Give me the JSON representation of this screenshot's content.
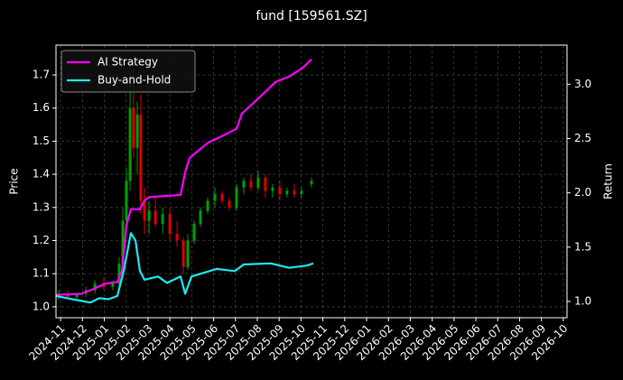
{
  "chart_data": {
    "type": "candlestick",
    "title": "fund [159561.SZ]",
    "ylabel": "Price",
    "y2label": "Return",
    "xlim": [
      -0.21,
      23.17
    ],
    "xticks": [
      {
        "value": 0,
        "label": "2024-11"
      },
      {
        "value": 1,
        "label": "2024-12"
      },
      {
        "value": 2,
        "label": "2025-01"
      },
      {
        "value": 3,
        "label": "2025-02"
      },
      {
        "value": 4,
        "label": "2025-03"
      },
      {
        "value": 5,
        "label": "2025-04"
      },
      {
        "value": 6,
        "label": "2025-05"
      },
      {
        "value": 7,
        "label": "2025-06"
      },
      {
        "value": 8,
        "label": "2025-07"
      },
      {
        "value": 9,
        "label": "2025-08"
      },
      {
        "value": 10,
        "label": "2025-09"
      },
      {
        "value": 11,
        "label": "2025-10"
      },
      {
        "value": 12,
        "label": "2025-11"
      },
      {
        "value": 13,
        "label": "2025-12"
      },
      {
        "value": 14,
        "label": "2026-01"
      },
      {
        "value": 15,
        "label": "2026-02"
      },
      {
        "value": 16,
        "label": "2026-03"
      },
      {
        "value": 17,
        "label": "2026-04"
      },
      {
        "value": 18,
        "label": "2026-05"
      },
      {
        "value": 19,
        "label": "2026-06"
      },
      {
        "value": 20,
        "label": "2026-07"
      },
      {
        "value": 21,
        "label": "2026-08"
      },
      {
        "value": 22,
        "label": "2026-09"
      },
      {
        "value": 23,
        "label": "2026-10"
      }
    ],
    "ylim": [
      0.967,
      1.79
    ],
    "yticks": [
      {
        "value": 1,
        "label": "1.0"
      },
      1.1,
      1.2,
      1.3,
      1.4,
      1.5,
      1.6,
      1.7
    ],
    "y2lim": [
      0.85,
      3.36
    ],
    "y2ticks": [
      {
        "value": 1,
        "label": "1.0"
      },
      1.5,
      {
        "value": 2,
        "label": "2.0"
      },
      2.5,
      {
        "value": 3,
        "label": "3.0"
      }
    ],
    "grid": true,
    "legend": "upper left",
    "candles": {
      "up_color": "#00a000",
      "down_color": "#e00000",
      "x": [
        -0.08,
        0.33,
        0.74,
        1.16,
        1.57,
        1.98,
        2.39,
        2.68,
        2.85,
        3.01,
        3.18,
        3.34,
        3.51,
        3.67,
        3.84,
        4.05,
        4.34,
        4.67,
        5.0,
        5.33,
        5.62,
        5.82,
        6.11,
        6.4,
        6.73,
        7.06,
        7.39,
        7.72,
        8.05,
        8.38,
        8.71,
        9.04,
        9.37,
        9.7,
        10.03,
        10.36,
        10.69,
        11.02,
        11.48
      ],
      "open": [
        1.03,
        1.04,
        1.03,
        1.04,
        1.05,
        1.07,
        1.06,
        1.07,
        1.13,
        1.26,
        1.38,
        1.6,
        1.48,
        1.58,
        1.32,
        1.26,
        1.29,
        1.25,
        1.28,
        1.22,
        1.2,
        1.12,
        1.2,
        1.25,
        1.29,
        1.32,
        1.34,
        1.32,
        1.3,
        1.36,
        1.38,
        1.36,
        1.39,
        1.35,
        1.36,
        1.34,
        1.35,
        1.34,
        1.37
      ],
      "high": [
        1.05,
        1.05,
        1.04,
        1.06,
        1.08,
        1.09,
        1.08,
        1.15,
        1.3,
        1.42,
        1.75,
        1.72,
        1.62,
        1.64,
        1.36,
        1.32,
        1.33,
        1.3,
        1.3,
        1.26,
        1.21,
        1.22,
        1.26,
        1.3,
        1.33,
        1.36,
        1.35,
        1.33,
        1.37,
        1.39,
        1.4,
        1.41,
        1.4,
        1.37,
        1.38,
        1.36,
        1.37,
        1.36,
        1.39
      ],
      "low": [
        1.02,
        1.03,
        1.02,
        1.03,
        1.04,
        1.05,
        1.05,
        1.06,
        1.1,
        1.22,
        1.35,
        1.45,
        1.4,
        1.28,
        1.22,
        1.22,
        1.24,
        1.22,
        1.2,
        1.18,
        1.1,
        1.11,
        1.19,
        1.24,
        1.28,
        1.3,
        1.31,
        1.29,
        1.29,
        1.34,
        1.35,
        1.35,
        1.33,
        1.33,
        1.32,
        1.33,
        1.33,
        1.33,
        1.36
      ],
      "close": [
        1.04,
        1.03,
        1.04,
        1.05,
        1.07,
        1.06,
        1.07,
        1.13,
        1.26,
        1.38,
        1.6,
        1.48,
        1.58,
        1.32,
        1.26,
        1.29,
        1.25,
        1.28,
        1.22,
        1.2,
        1.12,
        1.2,
        1.25,
        1.29,
        1.32,
        1.34,
        1.32,
        1.3,
        1.36,
        1.38,
        1.36,
        1.39,
        1.35,
        1.36,
        1.34,
        1.35,
        1.34,
        1.35,
        1.38
      ]
    },
    "series": [
      {
        "name": "AI Strategy",
        "color": "#ff00ff",
        "axis": "y2",
        "x": [
          -0.21,
          0.95,
          1.57,
          1.98,
          2.6,
          2.81,
          3.01,
          3.22,
          3.63,
          3.84,
          4.05,
          5.49,
          5.7,
          5.9,
          6.73,
          7.56,
          8.05,
          8.3,
          9.21,
          9.83,
          10.45,
          11.07,
          11.48
        ],
        "values": [
          1.06,
          1.07,
          1.12,
          1.16,
          1.18,
          1.28,
          1.7,
          1.85,
          1.85,
          1.93,
          1.96,
          1.98,
          2.19,
          2.32,
          2.46,
          2.54,
          2.59,
          2.73,
          2.9,
          3.02,
          3.07,
          3.15,
          3.23
        ]
      },
      {
        "name": "Buy-and-Hold",
        "color": "#1ee8f0",
        "axis": "y2",
        "x": [
          -0.21,
          0.54,
          1.36,
          1.78,
          2.19,
          2.6,
          2.89,
          3.22,
          3.43,
          3.63,
          3.84,
          4.46,
          4.87,
          5.49,
          5.7,
          5.99,
          7.14,
          7.97,
          8.38,
          9.62,
          10.45,
          11.27,
          11.56
        ],
        "values": [
          1.05,
          1.02,
          0.99,
          1.03,
          1.02,
          1.05,
          1.28,
          1.63,
          1.56,
          1.28,
          1.2,
          1.23,
          1.17,
          1.23,
          1.07,
          1.23,
          1.3,
          1.28,
          1.34,
          1.35,
          1.31,
          1.33,
          1.35
        ]
      }
    ]
  }
}
